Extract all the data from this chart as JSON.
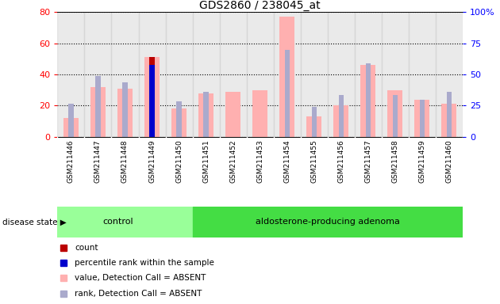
{
  "title": "GDS2860 / 238045_at",
  "samples": [
    "GSM211446",
    "GSM211447",
    "GSM211448",
    "GSM211449",
    "GSM211450",
    "GSM211451",
    "GSM211452",
    "GSM211453",
    "GSM211454",
    "GSM211455",
    "GSM211456",
    "GSM211457",
    "GSM211458",
    "GSM211459",
    "GSM211460"
  ],
  "value_absent": [
    12,
    32,
    31,
    51,
    18,
    28,
    29,
    30,
    77,
    13,
    20,
    46,
    30,
    24,
    21
  ],
  "rank_absent": [
    21,
    39,
    35,
    null,
    23,
    29,
    null,
    null,
    56,
    19,
    27,
    47,
    27,
    24,
    29
  ],
  "count_val": [
    null,
    null,
    null,
    51,
    null,
    null,
    null,
    null,
    null,
    null,
    null,
    null,
    null,
    null,
    null
  ],
  "pct_rank_val": [
    null,
    null,
    null,
    46,
    null,
    null,
    null,
    null,
    null,
    null,
    null,
    null,
    null,
    null,
    null
  ],
  "ylim_left": [
    0,
    80
  ],
  "ylim_right": [
    0,
    100
  ],
  "yticks_left": [
    0,
    20,
    40,
    60,
    80
  ],
  "yticks_right": [
    0,
    25,
    50,
    75,
    100
  ],
  "ytick_right_labels": [
    "0",
    "25",
    "50",
    "75",
    "100%"
  ],
  "n_control": 5,
  "color_value_absent": "#FFB0B0",
  "color_rank_absent": "#AAAACC",
  "color_count": "#BB0000",
  "color_percentile": "#0000CC",
  "col_bg": "#CCCCCC",
  "control_color": "#99FF99",
  "adenoma_color": "#44DD44",
  "label_count": "count",
  "label_percentile": "percentile rank within the sample",
  "label_value_absent": "value, Detection Call = ABSENT",
  "label_rank_absent": "rank, Detection Call = ABSENT",
  "disease_state_label": "disease state",
  "control_label": "control",
  "adenoma_label": "aldosterone-producing adenoma"
}
